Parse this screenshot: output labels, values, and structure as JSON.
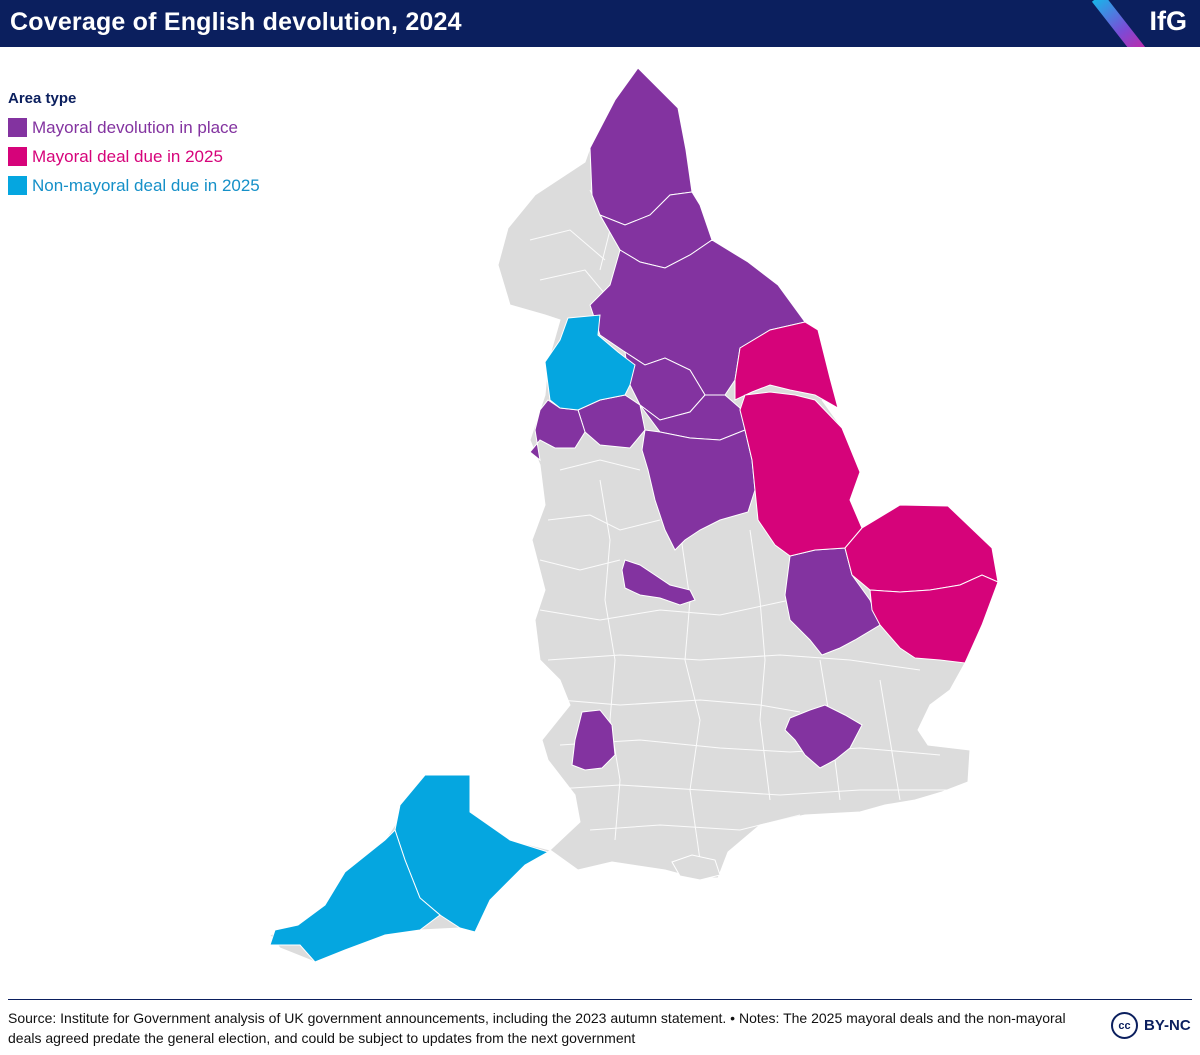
{
  "header": {
    "title": "Coverage of English devolution, 2024",
    "logo": "IfG"
  },
  "legend": {
    "title": "Area type",
    "items": [
      {
        "label": "Mayoral devolution in place",
        "color": "#8333a0"
      },
      {
        "label": "Mayoral deal due in 2025",
        "color": "#d6037a"
      },
      {
        "label": "Non-mayoral deal due in 2025",
        "color": "#05a6e0"
      }
    ]
  },
  "map": {
    "base_color": "#dcdcdc",
    "border_color": "#ffffff"
  },
  "footer": {
    "source": "Source: Institute for Government analysis of UK government announcements, including the 2023 autumn statement. • Notes: The 2025 mayoral deals and the non-mayoral deals agreed predate the general election, and could be subject to updates from the next government",
    "license_icon": "cc-icon",
    "license_text": "BY-NC"
  }
}
